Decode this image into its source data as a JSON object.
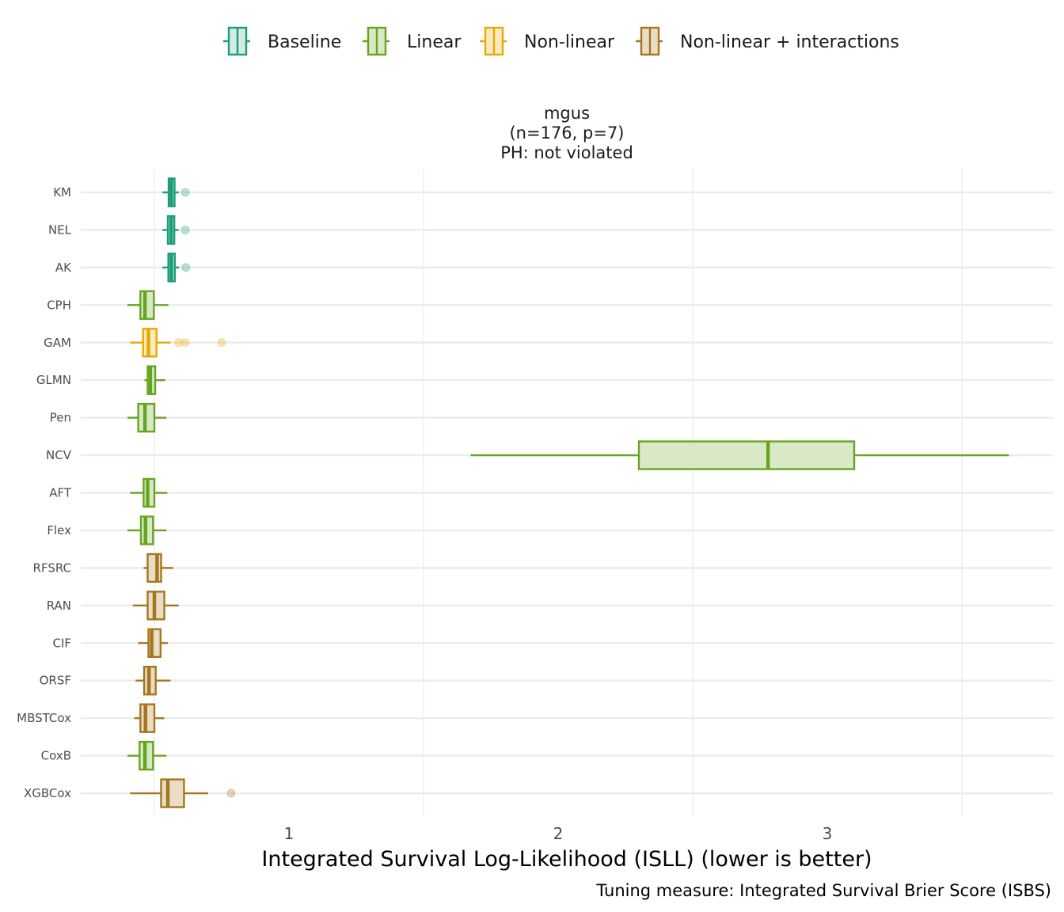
{
  "chart_data": {
    "type": "boxplot",
    "orientation": "horizontal",
    "facet": {
      "title_lines": [
        "mgus",
        "(n=176, p=7)",
        "PH: not violated"
      ]
    },
    "xlabel": "Integrated Survival Log-Likelihood (ISLL) (lower is better)",
    "caption": "Tuning measure: Integrated Survival Brier Score (ISBS)",
    "xlim": [
      0.22,
      3.84
    ],
    "x_ticks": [
      1,
      2,
      3
    ],
    "x_tick_labels": [
      "1",
      "2",
      "3"
    ],
    "x_minor_gridlines": [
      0.5,
      1.5,
      2.5,
      3.5
    ],
    "grid": true,
    "legend": {
      "position": "top",
      "entries": [
        {
          "name": "Baseline",
          "color": "#1b9e77",
          "fill": "#d2ece4"
        },
        {
          "name": "Linear",
          "color": "#66a61e",
          "fill": "#d9e9c7"
        },
        {
          "name": "Non-linear",
          "color": "#e6ab02",
          "fill": "#f9eac0"
        },
        {
          "name": "Non-linear + interactions",
          "color": "#a6761d",
          "fill": "#e9ddc7"
        }
      ]
    },
    "boxes": [
      {
        "learner": "KM",
        "group": "Baseline",
        "whisker_low": 0.53,
        "q1": 0.553,
        "median": 0.563,
        "q3": 0.575,
        "whisker_high": 0.59,
        "outliers": [
          0.615
        ]
      },
      {
        "learner": "NEL",
        "group": "Baseline",
        "whisker_low": 0.53,
        "q1": 0.55,
        "median": 0.562,
        "q3": 0.574,
        "whisker_high": 0.59,
        "outliers": [
          0.615
        ]
      },
      {
        "learner": "AK",
        "group": "Baseline",
        "whisker_low": 0.53,
        "q1": 0.552,
        "median": 0.563,
        "q3": 0.576,
        "whisker_high": 0.592,
        "outliers": [
          0.617
        ]
      },
      {
        "learner": "CPH",
        "group": "Linear",
        "whisker_low": 0.4,
        "q1": 0.448,
        "median": 0.465,
        "q3": 0.498,
        "whisker_high": 0.552,
        "outliers": []
      },
      {
        "learner": "GAM",
        "group": "Non-linear",
        "whisker_low": 0.41,
        "q1": 0.458,
        "median": 0.478,
        "q3": 0.508,
        "whisker_high": 0.56,
        "outliers": [
          0.59,
          0.615,
          0.75
        ]
      },
      {
        "learner": "GLMN",
        "group": "Linear",
        "whisker_low": 0.463,
        "q1": 0.475,
        "median": 0.485,
        "q3": 0.503,
        "whisker_high": 0.54,
        "outliers": []
      },
      {
        "learner": "Pen",
        "group": "Linear",
        "whisker_low": 0.4,
        "q1": 0.44,
        "median": 0.465,
        "q3": 0.5,
        "whisker_high": 0.545,
        "outliers": []
      },
      {
        "learner": "NCV",
        "group": "Linear",
        "whisker_low": 1.675,
        "q1": 2.3,
        "median": 2.78,
        "q3": 3.1,
        "whisker_high": 3.675,
        "outliers": []
      },
      {
        "learner": "AFT",
        "group": "Linear",
        "whisker_low": 0.41,
        "q1": 0.46,
        "median": 0.475,
        "q3": 0.5,
        "whisker_high": 0.548,
        "outliers": []
      },
      {
        "learner": "Flex",
        "group": "Linear",
        "whisker_low": 0.4,
        "q1": 0.45,
        "median": 0.467,
        "q3": 0.495,
        "whisker_high": 0.545,
        "outliers": []
      },
      {
        "learner": "RFSRC",
        "group": "Non-linear + interactions",
        "whisker_low": 0.46,
        "q1": 0.475,
        "median": 0.51,
        "q3": 0.525,
        "whisker_high": 0.57,
        "outliers": []
      },
      {
        "learner": "RAN",
        "group": "Non-linear + interactions",
        "whisker_low": 0.42,
        "q1": 0.475,
        "median": 0.5,
        "q3": 0.537,
        "whisker_high": 0.59,
        "outliers": []
      },
      {
        "learner": "CIF",
        "group": "Non-linear + interactions",
        "whisker_low": 0.44,
        "q1": 0.478,
        "median": 0.49,
        "q3": 0.523,
        "whisker_high": 0.55,
        "outliers": []
      },
      {
        "learner": "ORSF",
        "group": "Non-linear + interactions",
        "whisker_low": 0.43,
        "q1": 0.462,
        "median": 0.48,
        "q3": 0.505,
        "whisker_high": 0.56,
        "outliers": []
      },
      {
        "learner": "MBSTCox",
        "group": "Non-linear + interactions",
        "whisker_low": 0.425,
        "q1": 0.448,
        "median": 0.467,
        "q3": 0.5,
        "whisker_high": 0.537,
        "outliers": []
      },
      {
        "learner": "CoxB",
        "group": "Linear",
        "whisker_low": 0.4,
        "q1": 0.445,
        "median": 0.465,
        "q3": 0.495,
        "whisker_high": 0.545,
        "outliers": []
      },
      {
        "learner": "XGBCox",
        "group": "Non-linear + interactions",
        "whisker_low": 0.41,
        "q1": 0.525,
        "median": 0.55,
        "q3": 0.61,
        "whisker_high": 0.7,
        "outliers": [
          0.785
        ]
      }
    ]
  }
}
